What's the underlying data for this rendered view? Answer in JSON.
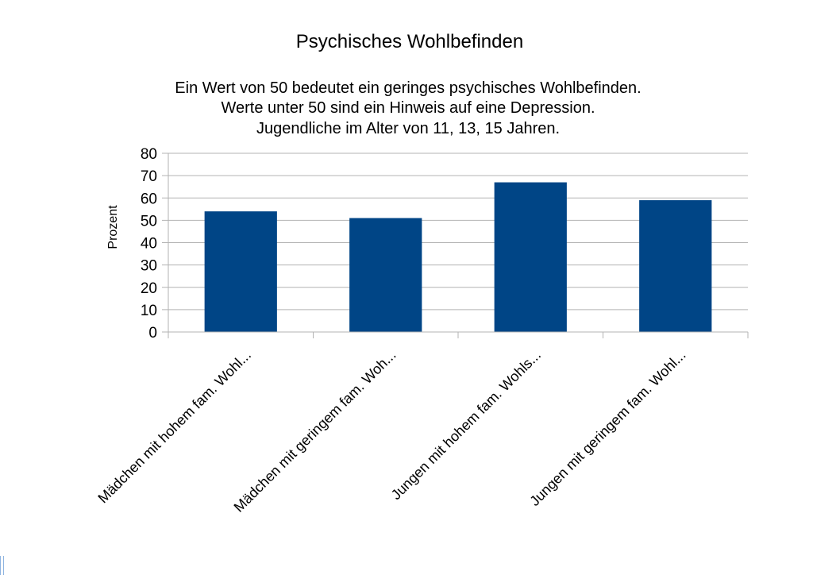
{
  "chart_data": {
    "type": "bar",
    "title": "Psychisches Wohlbefinden",
    "subtitle_lines": [
      "Ein Wert von 50 bedeutet ein geringes psychisches Wohlbefinden.",
      "Werte unter 50 sind ein Hinweis auf eine Depression.",
      "Jugendliche im Alter von 11, 13, 15 Jahren."
    ],
    "ylabel": "Prozent",
    "xlabel": "",
    "ylim": [
      0,
      80
    ],
    "yticks": [
      0,
      10,
      20,
      30,
      40,
      50,
      60,
      70,
      80
    ],
    "categories": [
      "Mädchen mit hohem fam. Wohl...",
      "Mädchen mit geringem fam. Woh...",
      "Jungen mit hohem fam. Wohls...",
      "Jungen mit geringem fam. Wohl..."
    ],
    "values": [
      54,
      51,
      67,
      59
    ],
    "grid": true,
    "legend": "none",
    "bar_color": "#004586"
  }
}
